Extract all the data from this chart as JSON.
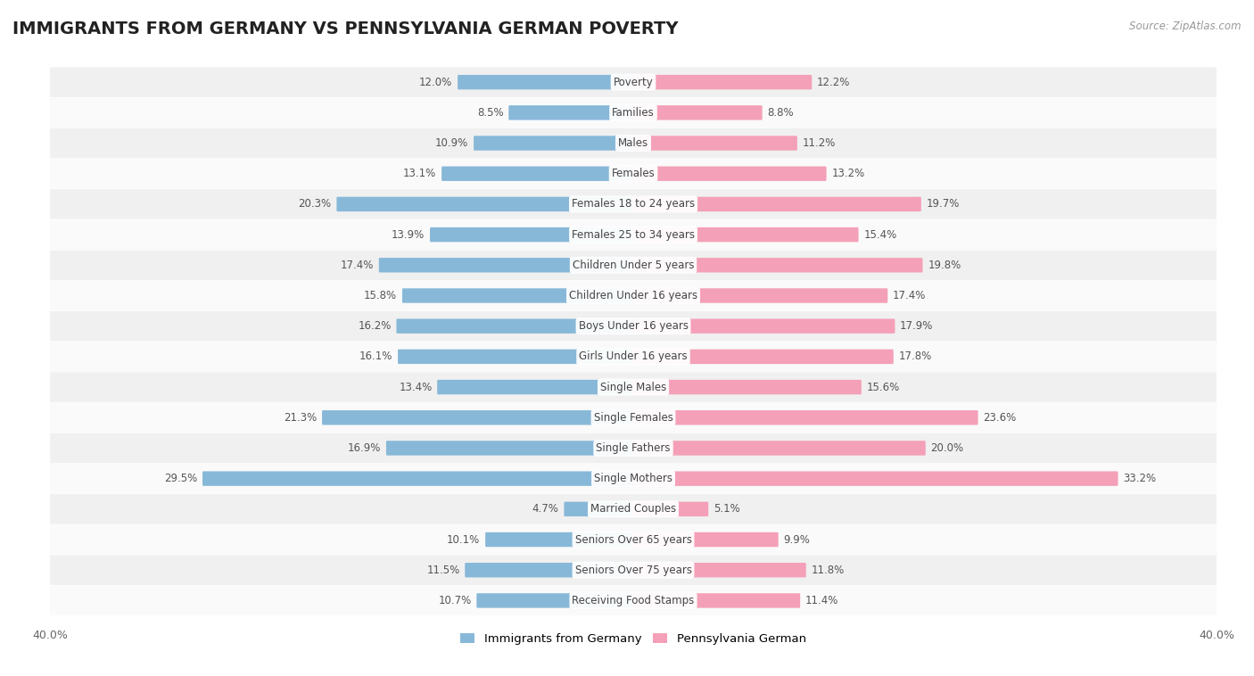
{
  "title": "IMMIGRANTS FROM GERMANY VS PENNSYLVANIA GERMAN POVERTY",
  "source": "Source: ZipAtlas.com",
  "categories": [
    "Poverty",
    "Families",
    "Males",
    "Females",
    "Females 18 to 24 years",
    "Females 25 to 34 years",
    "Children Under 5 years",
    "Children Under 16 years",
    "Boys Under 16 years",
    "Girls Under 16 years",
    "Single Males",
    "Single Females",
    "Single Fathers",
    "Single Mothers",
    "Married Couples",
    "Seniors Over 65 years",
    "Seniors Over 75 years",
    "Receiving Food Stamps"
  ],
  "left_values": [
    12.0,
    8.5,
    10.9,
    13.1,
    20.3,
    13.9,
    17.4,
    15.8,
    16.2,
    16.1,
    13.4,
    21.3,
    16.9,
    29.5,
    4.7,
    10.1,
    11.5,
    10.7
  ],
  "right_values": [
    12.2,
    8.8,
    11.2,
    13.2,
    19.7,
    15.4,
    19.8,
    17.4,
    17.9,
    17.8,
    15.6,
    23.6,
    20.0,
    33.2,
    5.1,
    9.9,
    11.8,
    11.4
  ],
  "left_color": "#88b8d8",
  "right_color": "#f4a0b8",
  "background_color": "#ffffff",
  "row_odd_color": "#f0f0f0",
  "row_even_color": "#fafafa",
  "max_val": 40.0,
  "legend_left": "Immigrants from Germany",
  "legend_right": "Pennsylvania German",
  "title_fontsize": 14,
  "label_fontsize": 8.5,
  "value_fontsize": 8.5,
  "axis_label_fontsize": 9
}
